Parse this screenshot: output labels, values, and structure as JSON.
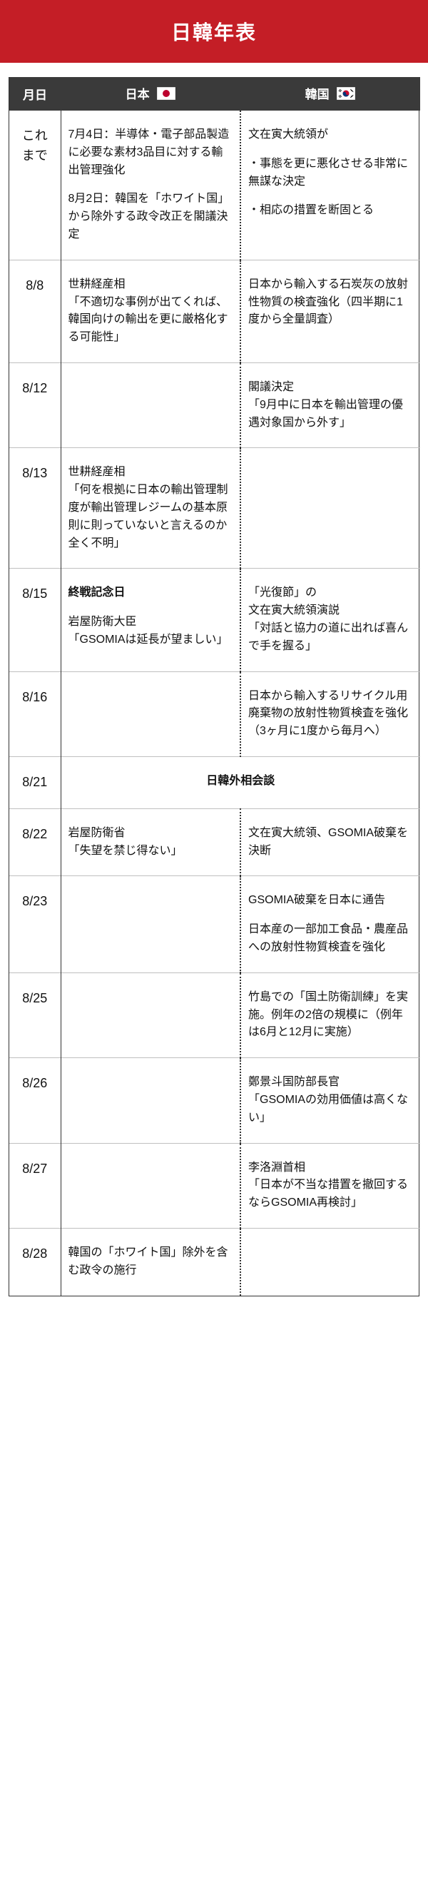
{
  "title": "日韓年表",
  "header": {
    "date": "月日",
    "japan": "日本",
    "korea": "韓国"
  },
  "flags": {
    "jp_red": "#bc002d",
    "kr_blue": "#003478",
    "kr_red": "#c60c30",
    "white": "#ffffff",
    "border": "#888888"
  },
  "colors": {
    "title_bg": "#c41e26",
    "header_bg": "#3a3a3a",
    "text": "#111111",
    "row_border": "#bfbfbf",
    "col_border": "#333333"
  },
  "rows": [
    {
      "date": "これまで",
      "jp": [
        "7月4日：半導体・電子部品製造に必要な素材3品目に対する輸出管理強化",
        "8月2日：韓国を「ホワイト国」から除外する政令改正を閣議決定"
      ],
      "kr": [
        "文在寅大統領が",
        "・事態を更に悪化させる非常に無謀な決定",
        "・相応の措置を断固とる"
      ]
    },
    {
      "date": "8/8",
      "jp": [
        "世耕経産相\n「不適切な事例が出てくれば、韓国向けの輸出を更に厳格化する可能性」"
      ],
      "kr": [
        "日本から輸入する石炭灰の放射性物質の検査強化（四半期に1度から全量調査）"
      ]
    },
    {
      "date": "8/12",
      "jp": [],
      "kr": [
        "閣議決定\n「9月中に日本を輸出管理の優遇対象国から外す」"
      ]
    },
    {
      "date": "8/13",
      "jp": [
        "世耕経産相\n「何を根拠に日本の輸出管理制度が輸出管理レジームの基本原則に則っていないと言えるのか全く不明」"
      ],
      "kr": []
    },
    {
      "date": "8/15",
      "jp": [
        "終戦記念日",
        "岩屋防衛大臣\n「GSOMIAは延長が望ましい」"
      ],
      "jp_bold_first": true,
      "kr": [
        "「光復節」の\n文在寅大統領演説\n「対話と協力の道に出れば喜んで手を握る」"
      ]
    },
    {
      "date": "8/16",
      "jp": [],
      "kr": [
        "日本から輸入するリサイクル用廃棄物の放射性物質検査を強化（3ヶ月に1度から毎月へ）"
      ]
    },
    {
      "date": "8/21",
      "merged": "日韓外相会談"
    },
    {
      "date": "8/22",
      "jp": [
        "岩屋防衛省\n「失望を禁じ得ない」"
      ],
      "kr": [
        "文在寅大統領、GSOMIA破棄を決断"
      ]
    },
    {
      "date": "8/23",
      "jp": [],
      "kr": [
        "GSOMIA破棄を日本に通告",
        "日本産の一部加工食品・農産品への放射性物質検査を強化"
      ]
    },
    {
      "date": "8/25",
      "jp": [],
      "kr": [
        "竹島での「国土防衛訓練」を実施。例年の2倍の規模に（例年は6月と12月に実施）"
      ]
    },
    {
      "date": "8/26",
      "jp": [],
      "kr": [
        "鄭景斗国防部長官\n「GSOMIAの効用価値は高くない」"
      ]
    },
    {
      "date": "8/27",
      "jp": [],
      "kr": [
        "李洛淵首相\n「日本が不当な措置を撤回するならGSOMIA再検討」"
      ]
    },
    {
      "date": "8/28",
      "jp": [
        "韓国の「ホワイト国」除外を含む政令の施行"
      ],
      "kr": []
    }
  ]
}
